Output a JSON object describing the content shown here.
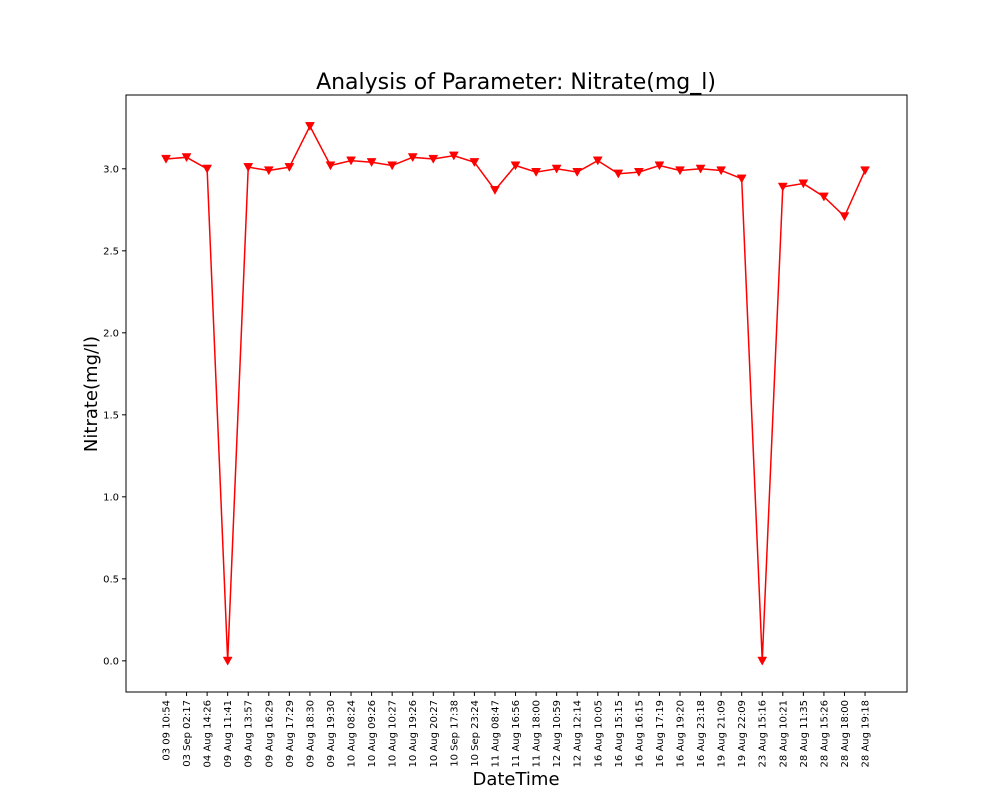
{
  "chart_data": {
    "type": "line",
    "title": "Analysis of Parameter: Nitrate(mg_l)",
    "xlabel": "DateTime",
    "ylabel": "Nitrate(mg/l)",
    "ylim": [
      -0.19,
      3.45
    ],
    "y_ticks": [
      0.0,
      0.5,
      1.0,
      1.5,
      2.0,
      2.5,
      3.0
    ],
    "y_tick_labels": [
      "0.0",
      "0.5",
      "1.0",
      "1.5",
      "2.0",
      "2.5",
      "3.0"
    ],
    "grid": false,
    "marker": "triangle-down",
    "color": "#ff0000",
    "categories": [
      "03 09 10:54",
      "03 Sep 02:17",
      "04 Aug 14:26",
      "09 Aug 11:41",
      "09 Aug 13:57",
      "09 Aug 16:29",
      "09 Aug 17:29",
      "09 Aug 18:30",
      "09 Aug 19:30",
      "10 Aug 08:24",
      "10 Aug 09:26",
      "10 Aug 10:27",
      "10 Aug 19:26",
      "10 Aug 20:27",
      "10 Sep 17:38",
      "10 Sep 23:24",
      "11 Aug 08:47",
      "11 Aug 16:56",
      "11 Aug 18:00",
      "12 Aug 10:59",
      "12 Aug 12:14",
      "16 Aug 10:05",
      "16 Aug 15:15",
      "16 Aug 16:15",
      "16 Aug 17:19",
      "16 Aug 19:20",
      "16 Aug 23:18",
      "19 Aug 21:09",
      "19 Aug 22:09",
      "23 Aug 15:16",
      "28 Aug 10:21",
      "28 Aug 11:35",
      "28 Aug 15:26",
      "28 Aug 18:00",
      "28 Aug 19:18"
    ],
    "series": [
      {
        "values": [
          3.06,
          3.07,
          3.0,
          0.0,
          3.01,
          2.99,
          3.01,
          3.26,
          3.02,
          3.05,
          3.04,
          3.02,
          3.07,
          3.06,
          3.08,
          3.04,
          2.87,
          3.02,
          2.98,
          3.0,
          2.98,
          3.05,
          2.97,
          2.98,
          3.02,
          2.99,
          3.0,
          2.99,
          2.94,
          0.0,
          2.89,
          2.91,
          2.83,
          2.71,
          2.99
        ]
      }
    ]
  }
}
